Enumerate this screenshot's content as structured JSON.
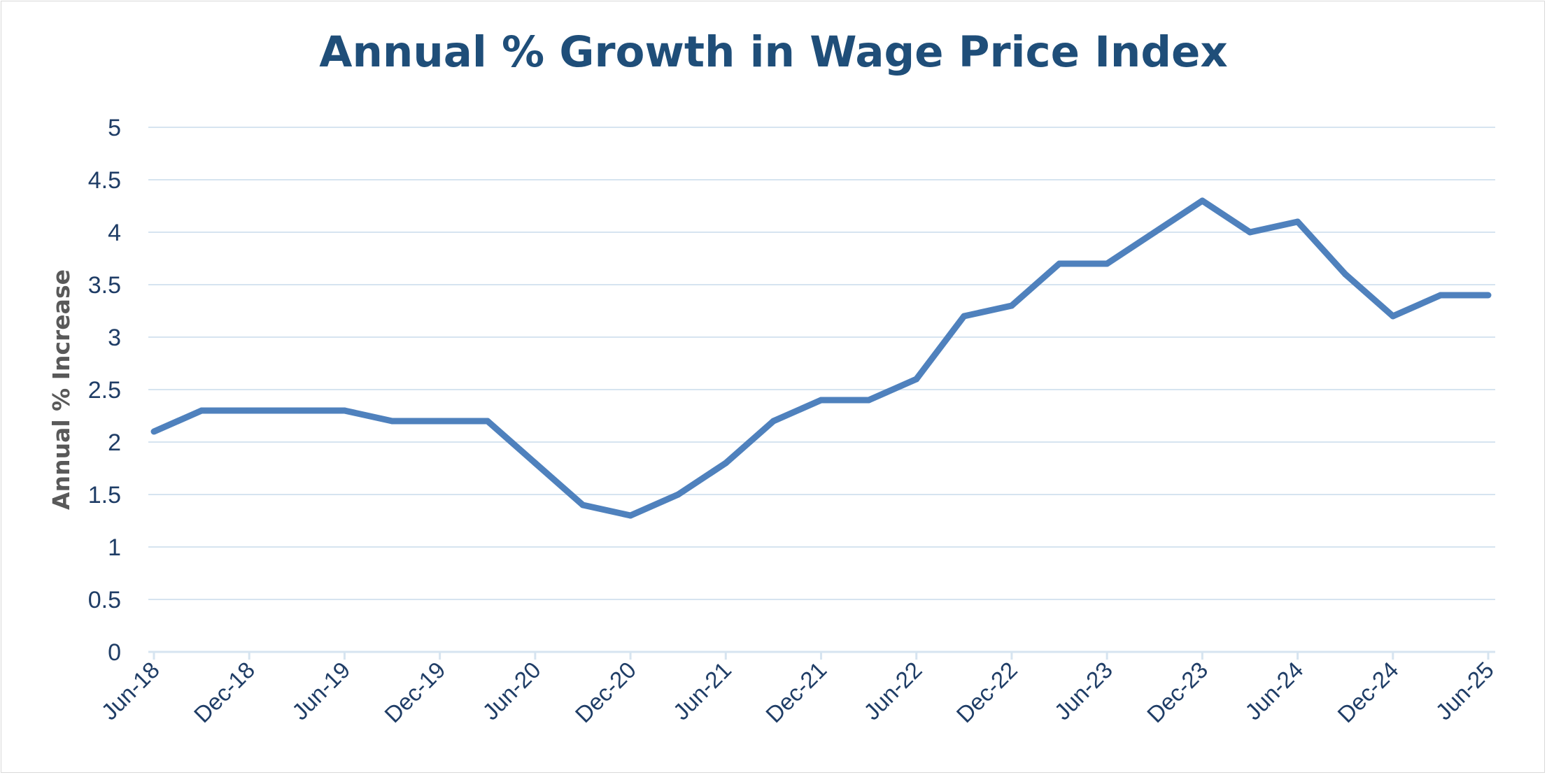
{
  "chart_data": {
    "type": "line",
    "title": "Annual % Growth in Wage Price Index",
    "xlabel": "",
    "ylabel": "Annual % Increase",
    "ylim": [
      0,
      5
    ],
    "yticks": [
      "0",
      "0.5",
      "1",
      "1.5",
      "2",
      "2.5",
      "3",
      "3.5",
      "4",
      "4.5",
      "5"
    ],
    "xtick_labels": [
      "Jun-18",
      "Dec-18",
      "Jun-19",
      "Dec-19",
      "Jun-20",
      "Dec-20",
      "Jun-21",
      "Dec-21",
      "Jun-22",
      "Dec-22",
      "Jun-23",
      "Dec-23",
      "Jun-24",
      "Dec-24",
      "Jun-25"
    ],
    "x": [
      "Jun-18",
      "Sep-18",
      "Dec-18",
      "Mar-19",
      "Jun-19",
      "Sep-19",
      "Dec-19",
      "Mar-20",
      "Jun-20",
      "Sep-20",
      "Dec-20",
      "Mar-21",
      "Jun-21",
      "Sep-21",
      "Dec-21",
      "Mar-22",
      "Jun-22",
      "Sep-22",
      "Dec-22",
      "Mar-23",
      "Jun-23",
      "Sep-23",
      "Dec-23",
      "Mar-24",
      "Jun-24",
      "Sep-24",
      "Dec-24",
      "Mar-25",
      "Jun-25"
    ],
    "series": [
      {
        "color": "#4f81bd",
        "values": [
          2.1,
          2.3,
          2.3,
          2.3,
          2.3,
          2.2,
          2.2,
          2.2,
          1.8,
          1.4,
          1.3,
          1.5,
          1.8,
          2.2,
          2.4,
          2.4,
          2.6,
          3.2,
          3.3,
          3.7,
          3.7,
          4.0,
          4.3,
          4.0,
          4.1,
          3.6,
          3.2,
          3.4,
          3.4
        ]
      }
    ],
    "grid": true,
    "legend": "none"
  }
}
